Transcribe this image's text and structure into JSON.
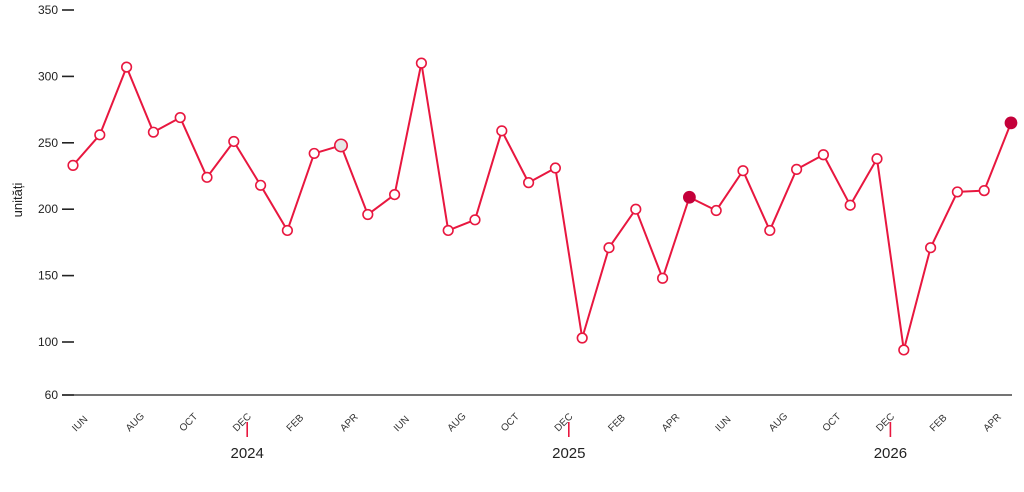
{
  "colors": {
    "line": "#e8173f",
    "point_fill": "#ffffff",
    "highlight_fill": "#c4003a",
    "hover_fill": "#e6e6e6",
    "axis": "#222222"
  },
  "chart_data": {
    "type": "line",
    "ylabel": "unități",
    "ylim": [
      60,
      350
    ],
    "yticks": [
      60,
      100,
      150,
      200,
      250,
      300,
      350
    ],
    "x": [
      "2023-06",
      "2023-07",
      "2023-08",
      "2023-09",
      "2023-10",
      "2023-11",
      "2023-12",
      "2024-01",
      "2024-02",
      "2024-03",
      "2024-04",
      "2024-05",
      "2024-06",
      "2024-07",
      "2024-08",
      "2024-09",
      "2024-10",
      "2024-11",
      "2024-12",
      "2025-01",
      "2025-02",
      "2025-03",
      "2025-04",
      "2025-05",
      "2025-06",
      "2025-07",
      "2025-08",
      "2025-09",
      "2025-10",
      "2025-11",
      "2025-12",
      "2026-01",
      "2026-02",
      "2026-03",
      "2026-04",
      "2026-05"
    ],
    "values": [
      233,
      256,
      307,
      258,
      269,
      224,
      251,
      218,
      184,
      242,
      248,
      196,
      211,
      310,
      184,
      192,
      259,
      220,
      231,
      103,
      171,
      200,
      148,
      209,
      199,
      229,
      184,
      230,
      241,
      203,
      238,
      94,
      171,
      213,
      214,
      265
    ],
    "month_labels": [
      "IUN",
      "",
      "AUG",
      "",
      "OCT",
      "",
      "DEC",
      "",
      "FEB",
      "",
      "APR",
      "",
      "IUN",
      "",
      "AUG",
      "",
      "OCT",
      "",
      "DEC",
      "",
      "FEB",
      "",
      "APR",
      "",
      "IUN",
      "",
      "AUG",
      "",
      "OCT",
      "",
      "DEC",
      "",
      "FEB",
      "",
      "APR",
      ""
    ],
    "year_labels": [
      {
        "label": "2024",
        "after_index": 6
      },
      {
        "label": "2025",
        "after_index": 18
      },
      {
        "label": "2026",
        "after_index": 30
      }
    ],
    "highlighted_indices": [
      23,
      35
    ],
    "hover_index": 10,
    "grid": false
  }
}
